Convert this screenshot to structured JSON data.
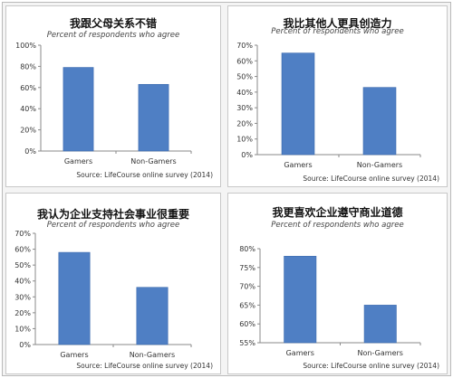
{
  "colors": {
    "bar": "#4f7fc4",
    "bar_edge": "#3b6aae",
    "axis": "#8a8a8a",
    "grid": "#d2d2d2",
    "text": "#333333"
  },
  "chart_data": [
    {
      "type": "bar",
      "title": "我跟父母关系不错",
      "subtitle": "Percent of respondents who agree",
      "source": "Source: LifeCourse online survey (2014)",
      "categories": [
        "Gamers",
        "Non-Gamers"
      ],
      "values": [
        79,
        63
      ],
      "ylim": [
        0,
        100
      ],
      "yticks": [
        0,
        20,
        40,
        60,
        80,
        100
      ],
      "ytick_labels": [
        "0%",
        "20%",
        "40%",
        "60%",
        "80%",
        "100%"
      ],
      "grid": false
    },
    {
      "type": "bar",
      "title": "我比其他人更具创造力",
      "subtitle": "Percent of respondents who agree",
      "source": "Source: LifeCourse online survey (2014)",
      "categories": [
        "Gamers",
        "Non-Gamers"
      ],
      "values": [
        65,
        43
      ],
      "ylim": [
        0,
        70
      ],
      "yticks": [
        0,
        10,
        20,
        30,
        40,
        50,
        60,
        70
      ],
      "ytick_labels": [
        "0%",
        "10%",
        "20%",
        "30%",
        "40%",
        "50%",
        "60%",
        "70%"
      ],
      "grid": false
    },
    {
      "type": "bar",
      "title": "我认为企业支持社会事业很重要",
      "subtitle": "Percent of respondents who agree",
      "source": "Source: LifeCourse online survey (2014)",
      "categories": [
        "Gamers",
        "Non-Gamers"
      ],
      "values": [
        58,
        36
      ],
      "ylim": [
        0,
        70
      ],
      "yticks": [
        0,
        10,
        20,
        30,
        40,
        50,
        60,
        70
      ],
      "ytick_labels": [
        "0%",
        "10%",
        "20%",
        "30%",
        "40%",
        "50%",
        "60%",
        "70%"
      ],
      "grid": false
    },
    {
      "type": "bar",
      "title": "我更喜欢企业遵守商业道德",
      "subtitle": "Percent of respondents who agree",
      "source": "Source: LifeCourse online survey (2014)",
      "categories": [
        "Gamers",
        "Non-Gamers"
      ],
      "values": [
        78,
        65
      ],
      "ylim": [
        55,
        80
      ],
      "yticks": [
        55,
        60,
        65,
        70,
        75,
        80
      ],
      "ytick_labels": [
        "55%",
        "60%",
        "65%",
        "70%",
        "75%",
        "80%"
      ],
      "grid": false
    }
  ]
}
